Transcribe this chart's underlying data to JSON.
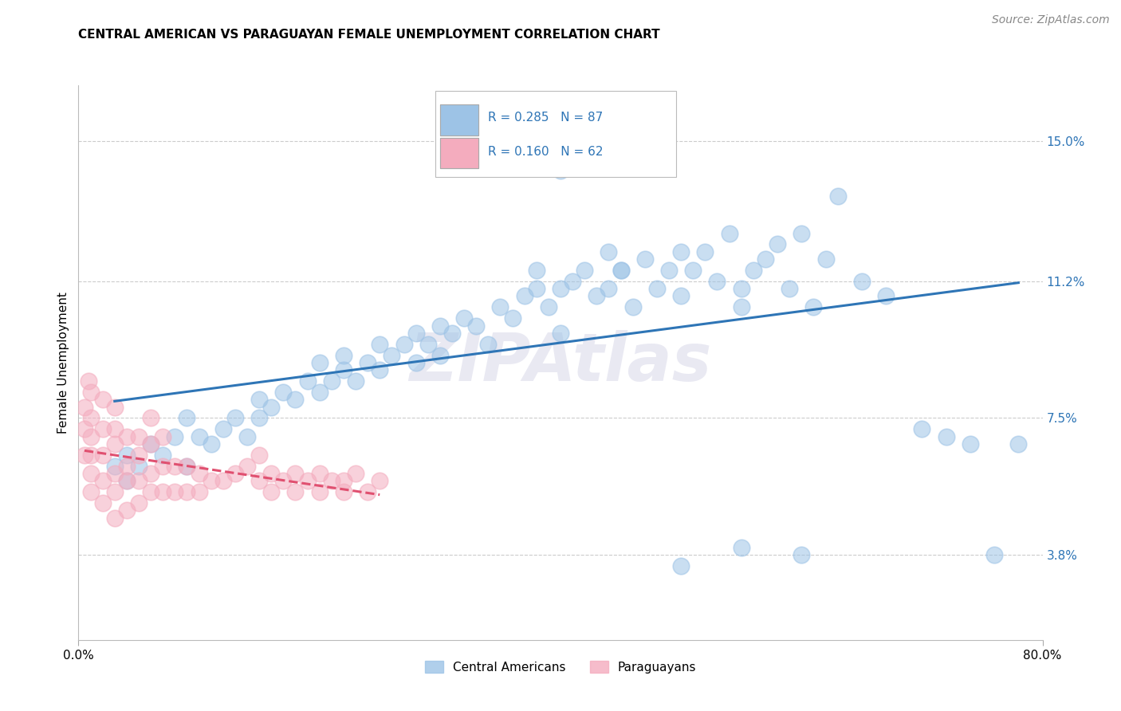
{
  "title": "CENTRAL AMERICAN VS PARAGUAYAN FEMALE UNEMPLOYMENT CORRELATION CHART",
  "source": "Source: ZipAtlas.com",
  "ylabel": "Female Unemployment",
  "watermark": "ZIPAtlas",
  "xlim": [
    0.0,
    80.0
  ],
  "ylim": [
    1.5,
    16.5
  ],
  "ytick_positions": [
    3.8,
    7.5,
    11.2,
    15.0
  ],
  "ytick_labels": [
    "3.8%",
    "7.5%",
    "11.2%",
    "15.0%"
  ],
  "xtick_positions": [
    0.0,
    80.0
  ],
  "xtick_labels": [
    "0.0%",
    "80.0%"
  ],
  "legend_R1": "R = 0.285",
  "legend_N1": "N = 87",
  "legend_R2": "R = 0.160",
  "legend_N2": "N = 62",
  "legend_label1": "Central Americans",
  "legend_label2": "Paraguayans",
  "blue_color": "#9DC3E6",
  "pink_color": "#F4ACBE",
  "blue_edge_color": "#9DC3E6",
  "pink_edge_color": "#F4ACBE",
  "blue_line_color": "#2E75B6",
  "pink_line_color": "#E05070",
  "label_color": "#2E75B6",
  "legend_text_color": "#2E75B6",
  "background_color": "#FFFFFF",
  "grid_color": "#CCCCCC",
  "title_fontsize": 11,
  "source_fontsize": 10,
  "axis_label_fontsize": 11,
  "tick_fontsize": 11,
  "watermark_fontsize": 60,
  "blue_x": [
    3,
    4,
    4,
    5,
    6,
    7,
    8,
    9,
    9,
    10,
    11,
    12,
    13,
    14,
    15,
    15,
    16,
    17,
    18,
    19,
    20,
    20,
    21,
    22,
    22,
    23,
    24,
    25,
    25,
    26,
    27,
    28,
    28,
    29,
    30,
    30,
    31,
    32,
    33,
    34,
    35,
    36,
    37,
    38,
    38,
    39,
    40,
    40,
    41,
    42,
    43,
    44,
    44,
    45,
    46,
    47,
    48,
    49,
    50,
    50,
    51,
    52,
    53,
    54,
    55,
    55,
    56,
    57,
    58,
    59,
    60,
    61,
    62,
    63,
    65,
    67,
    70,
    72,
    74,
    76,
    78,
    35,
    40,
    45,
    50,
    55,
    60
  ],
  "blue_y": [
    6.2,
    5.8,
    6.5,
    6.2,
    6.8,
    6.5,
    7.0,
    6.2,
    7.5,
    7.0,
    6.8,
    7.2,
    7.5,
    7.0,
    7.5,
    8.0,
    7.8,
    8.2,
    8.0,
    8.5,
    8.2,
    9.0,
    8.5,
    8.8,
    9.2,
    8.5,
    9.0,
    9.5,
    8.8,
    9.2,
    9.5,
    9.0,
    9.8,
    9.5,
    9.2,
    10.0,
    9.8,
    10.2,
    10.0,
    9.5,
    10.5,
    10.2,
    10.8,
    11.0,
    11.5,
    10.5,
    11.0,
    9.8,
    11.2,
    11.5,
    10.8,
    11.0,
    12.0,
    11.5,
    10.5,
    11.8,
    11.0,
    11.5,
    12.0,
    10.8,
    11.5,
    12.0,
    11.2,
    12.5,
    11.0,
    10.5,
    11.5,
    11.8,
    12.2,
    11.0,
    12.5,
    10.5,
    11.8,
    13.5,
    11.2,
    10.8,
    7.2,
    7.0,
    6.8,
    3.8,
    6.8,
    14.5,
    14.2,
    11.5,
    3.5,
    4.0,
    3.8
  ],
  "pink_x": [
    0.5,
    0.5,
    0.5,
    0.8,
    1,
    1,
    1,
    1,
    1,
    1,
    2,
    2,
    2,
    2,
    2,
    3,
    3,
    3,
    3,
    3,
    3,
    4,
    4,
    4,
    4,
    5,
    5,
    5,
    5,
    6,
    6,
    6,
    6,
    7,
    7,
    7,
    8,
    8,
    9,
    9,
    10,
    10,
    11,
    12,
    13,
    14,
    15,
    15,
    16,
    16,
    17,
    18,
    18,
    19,
    20,
    20,
    21,
    22,
    22,
    23,
    24,
    25
  ],
  "pink_y": [
    6.5,
    7.2,
    7.8,
    8.5,
    5.5,
    6.0,
    6.5,
    7.0,
    7.5,
    8.2,
    5.2,
    5.8,
    6.5,
    7.2,
    8.0,
    4.8,
    5.5,
    6.0,
    6.8,
    7.2,
    7.8,
    5.0,
    5.8,
    6.2,
    7.0,
    5.2,
    5.8,
    6.5,
    7.0,
    5.5,
    6.0,
    6.8,
    7.5,
    5.5,
    6.2,
    7.0,
    5.5,
    6.2,
    5.5,
    6.2,
    5.5,
    6.0,
    5.8,
    5.8,
    6.0,
    6.2,
    5.8,
    6.5,
    5.5,
    6.0,
    5.8,
    5.5,
    6.0,
    5.8,
    5.5,
    6.0,
    5.8,
    5.5,
    5.8,
    6.0,
    5.5,
    5.8
  ]
}
